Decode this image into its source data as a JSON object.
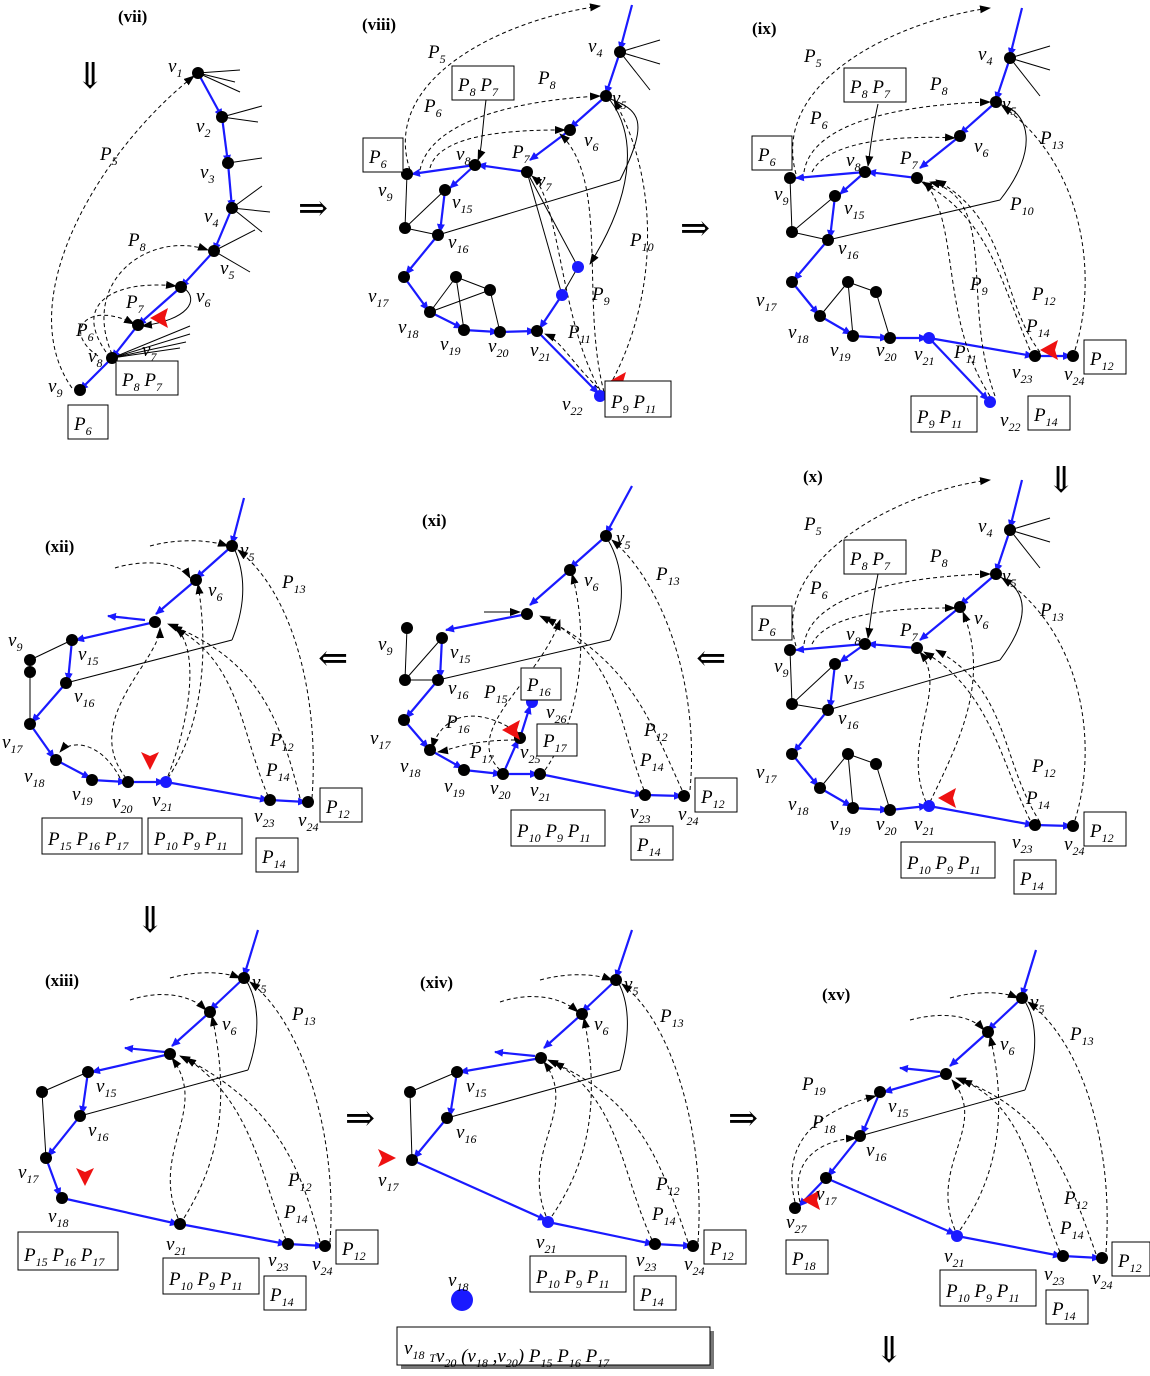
{
  "panel_titles": [
    "(vii)",
    "(viii)",
    "(ix)",
    "(x)",
    "(xi)",
    "(xii)",
    "(xiii)",
    "(xiv)",
    "(xv)"
  ],
  "arrows": [
    "⇓",
    "⇒",
    "⇒",
    "⇓",
    "⇐",
    "⇐",
    "⇓",
    "⇒",
    "⇒",
    "⇓"
  ],
  "vertex_names": [
    "v1",
    "v2",
    "v3",
    "v4",
    "v5",
    "v6",
    "v7",
    "v8",
    "v9",
    "v15",
    "v16",
    "v17",
    "v18",
    "v19",
    "v20",
    "v21",
    "v22",
    "v23",
    "v24",
    "v25",
    "v26",
    "v27"
  ],
  "path_names": [
    "P5",
    "P6",
    "P7",
    "P8",
    "P9",
    "P10",
    "P11",
    "P12",
    "P13",
    "P14",
    "P15",
    "P16",
    "P17",
    "P18",
    "P19"
  ],
  "boxes": [
    "P8 P7",
    "P6",
    "P9 P11",
    "P12",
    "P14",
    "P10 P9 P11",
    "P16",
    "P17",
    "P15 P16 P17",
    "P18"
  ],
  "bottom_note": "v18 →T v20 (v18 ,v20) P15 P16 P17"
}
